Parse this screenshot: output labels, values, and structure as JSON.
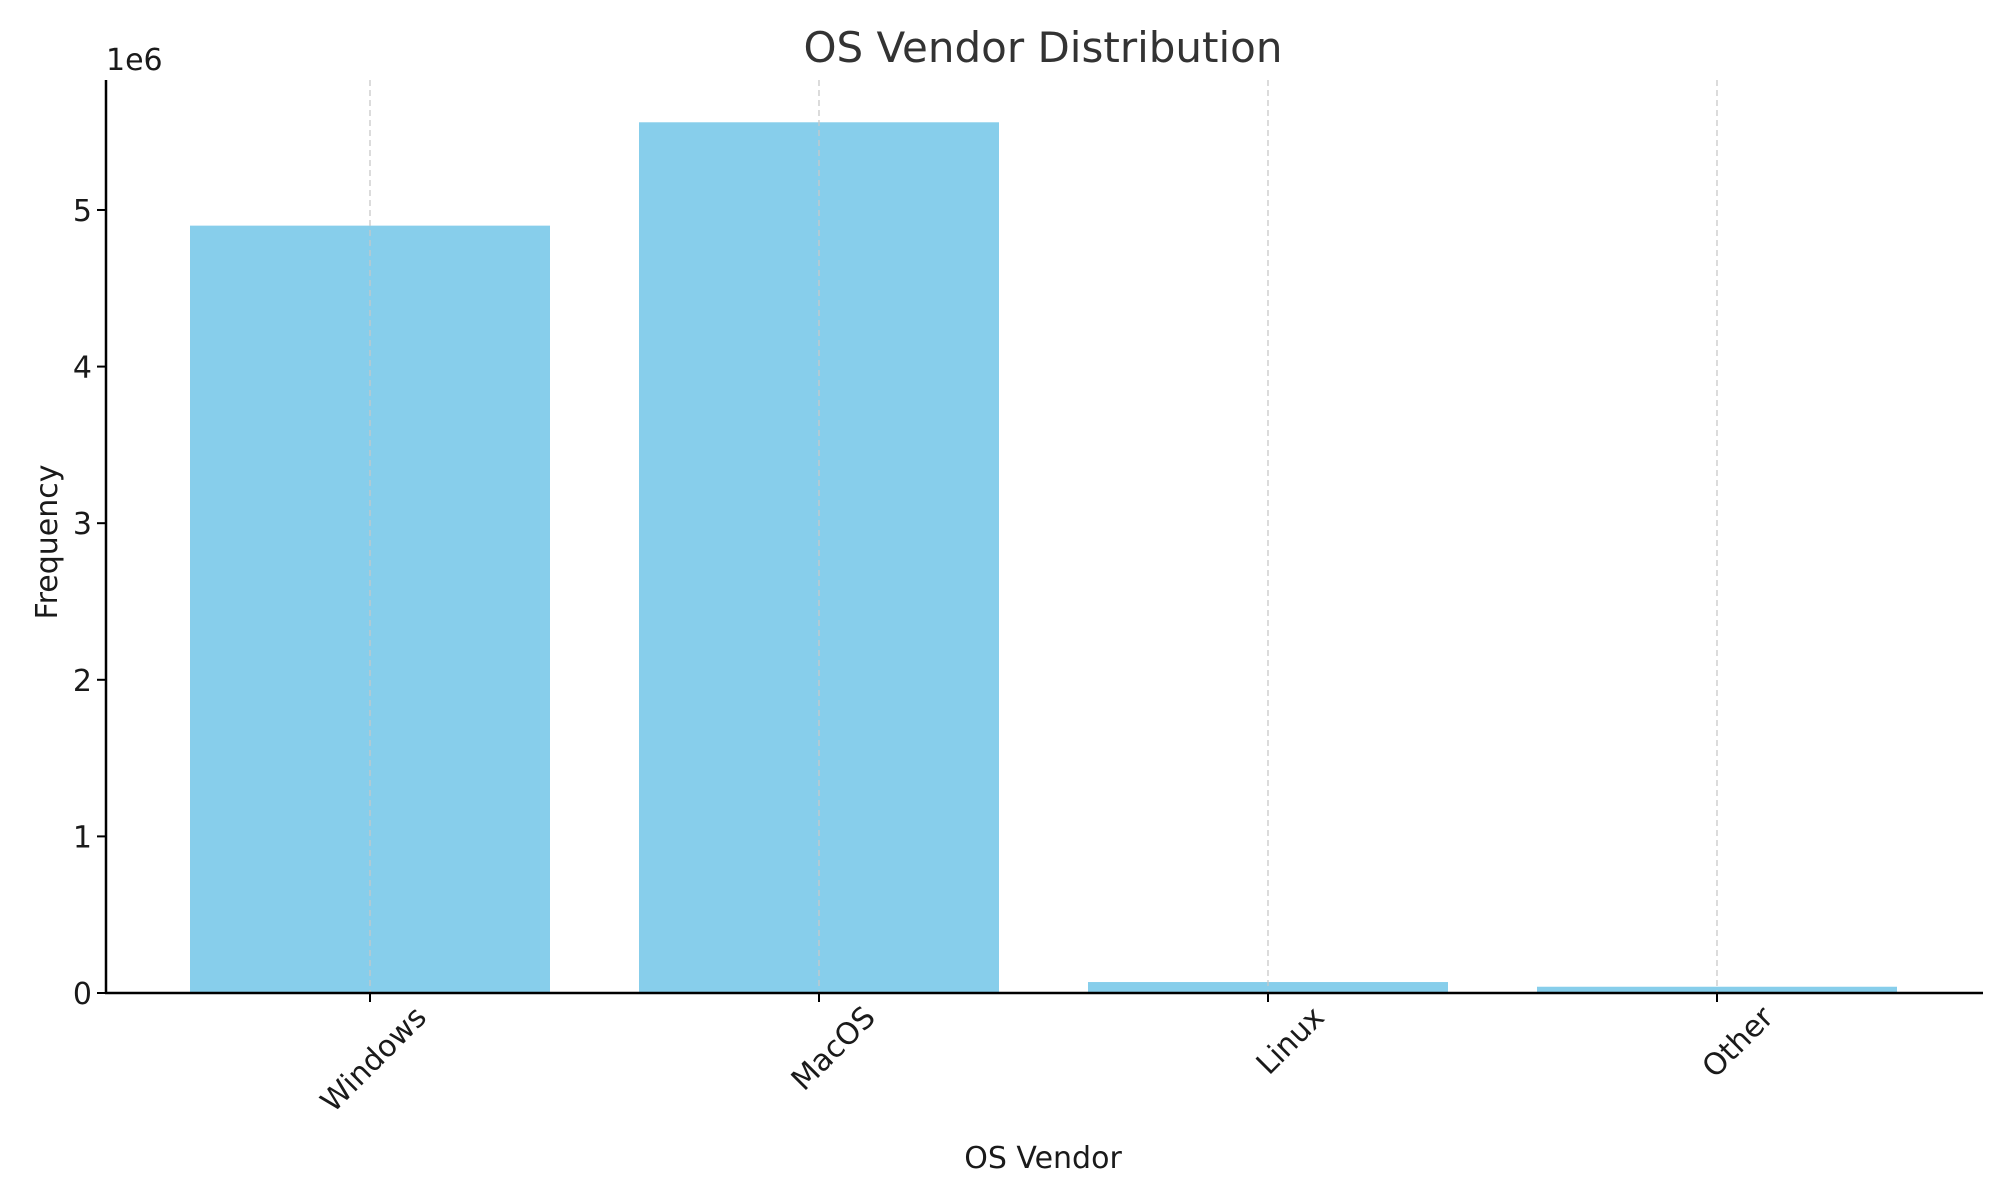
{
  "chart_data": {
    "type": "bar",
    "title": "OS Vendor Distribution",
    "xlabel": "OS Vendor",
    "ylabel": "Frequency",
    "y_offset_label": "1e6",
    "categories": [
      "Windows",
      "MacOS",
      "Linux",
      "Other"
    ],
    "values": [
      4900000,
      5560000,
      70000,
      40000
    ],
    "ylim": [
      0,
      5830000
    ],
    "yticks": [
      0,
      1,
      2,
      3,
      4,
      5
    ],
    "ytick_scale": 1000000,
    "grid": "x-dashed",
    "legend": "none",
    "bar_color": "#87CEEB",
    "grid_color": "#c8c8c8",
    "axis_color": "#000000"
  }
}
